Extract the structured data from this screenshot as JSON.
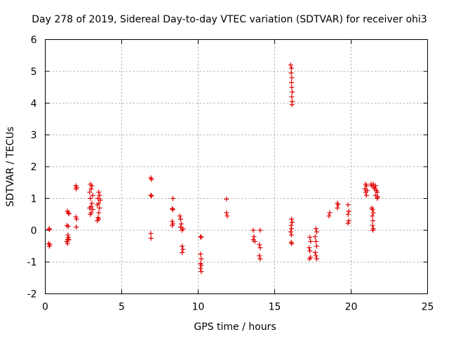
{
  "chart_data": {
    "type": "scatter",
    "title": "Day 278 of 2019, Sidereal Day-to-day VTEC variation (SDTVAR) for receiver ohi3",
    "xlabel": "GPS time / hours",
    "ylabel": "SDTVAR / TECUs",
    "xlim": [
      0,
      25
    ],
    "ylim": [
      -2,
      6
    ],
    "xticks": [
      "0",
      "5",
      "10",
      "15",
      "20",
      "25"
    ],
    "yticks": [
      "-2",
      "-1",
      "0",
      "1",
      "2",
      "3",
      "4",
      "5",
      "6"
    ],
    "grid": true,
    "marker": "plus",
    "color": "#e00000",
    "series": [
      {
        "name": "SDTVAR",
        "points": [
          [
            0.25,
            0.05
          ],
          [
            0.28,
            0.02
          ],
          [
            0.22,
            -0.42
          ],
          [
            0.27,
            -0.5
          ],
          [
            0.3,
            -0.45
          ],
          [
            1.45,
            0.6
          ],
          [
            1.5,
            0.55
          ],
          [
            1.55,
            0.52
          ],
          [
            1.42,
            0.15
          ],
          [
            1.5,
            0.12
          ],
          [
            1.48,
            -0.15
          ],
          [
            1.52,
            -0.22
          ],
          [
            1.46,
            -0.28
          ],
          [
            1.55,
            -0.3
          ],
          [
            1.4,
            -0.35
          ],
          [
            1.45,
            -0.42
          ],
          [
            2.0,
            1.4
          ],
          [
            2.05,
            1.35
          ],
          [
            2.02,
            1.3
          ],
          [
            2.0,
            0.42
          ],
          [
            2.05,
            0.35
          ],
          [
            2.03,
            0.1
          ],
          [
            2.95,
            1.45
          ],
          [
            3.05,
            1.4
          ],
          [
            3.0,
            1.3
          ],
          [
            2.9,
            1.2
          ],
          [
            3.1,
            1.1
          ],
          [
            2.95,
            1.0
          ],
          [
            3.05,
            0.85
          ],
          [
            3.0,
            0.75
          ],
          [
            2.9,
            0.7
          ],
          [
            3.1,
            0.65
          ],
          [
            3.0,
            0.55
          ],
          [
            2.95,
            0.5
          ],
          [
            3.5,
            1.2
          ],
          [
            3.55,
            1.1
          ],
          [
            3.45,
            1.0
          ],
          [
            3.6,
            0.95
          ],
          [
            3.5,
            0.85
          ],
          [
            3.4,
            0.8
          ],
          [
            3.55,
            0.7
          ],
          [
            3.5,
            0.55
          ],
          [
            3.45,
            0.4
          ],
          [
            3.5,
            0.35
          ],
          [
            3.4,
            0.3
          ],
          [
            6.9,
            1.65
          ],
          [
            6.95,
            1.6
          ],
          [
            6.9,
            1.1
          ],
          [
            6.95,
            1.08
          ],
          [
            6.9,
            -0.1
          ],
          [
            6.92,
            -0.25
          ],
          [
            8.35,
            1.0
          ],
          [
            8.3,
            0.68
          ],
          [
            8.35,
            0.65
          ],
          [
            8.3,
            0.28
          ],
          [
            8.35,
            0.2
          ],
          [
            8.3,
            0.15
          ],
          [
            8.8,
            0.45
          ],
          [
            8.85,
            0.35
          ],
          [
            8.9,
            0.2
          ],
          [
            8.85,
            0.1
          ],
          [
            9.0,
            0.05
          ],
          [
            8.95,
            0.0
          ],
          [
            8.95,
            -0.5
          ],
          [
            9.0,
            -0.6
          ],
          [
            8.95,
            -0.7
          ],
          [
            10.15,
            -0.2
          ],
          [
            10.2,
            -0.22
          ],
          [
            10.15,
            -0.75
          ],
          [
            10.2,
            -0.9
          ],
          [
            10.15,
            -1.05
          ],
          [
            10.2,
            -1.1
          ],
          [
            10.15,
            -1.2
          ],
          [
            10.2,
            -1.3
          ],
          [
            11.85,
            0.98
          ],
          [
            11.85,
            0.55
          ],
          [
            11.9,
            0.45
          ],
          [
            13.6,
            0.0
          ],
          [
            13.65,
            -0.2
          ],
          [
            13.6,
            -0.3
          ],
          [
            13.7,
            -0.35
          ],
          [
            14.05,
            0.0
          ],
          [
            14.0,
            -0.45
          ],
          [
            14.05,
            -0.55
          ],
          [
            14.0,
            -0.8
          ],
          [
            14.05,
            -0.9
          ],
          [
            16.05,
            5.2
          ],
          [
            16.1,
            5.1
          ],
          [
            16.08,
            4.95
          ],
          [
            16.12,
            4.8
          ],
          [
            16.1,
            4.65
          ],
          [
            16.12,
            4.5
          ],
          [
            16.15,
            4.35
          ],
          [
            16.12,
            4.2
          ],
          [
            16.15,
            4.05
          ],
          [
            16.13,
            3.95
          ],
          [
            16.1,
            0.35
          ],
          [
            16.15,
            0.25
          ],
          [
            16.08,
            0.15
          ],
          [
            16.1,
            0.05
          ],
          [
            16.05,
            -0.05
          ],
          [
            16.1,
            -0.15
          ],
          [
            16.08,
            -0.38
          ],
          [
            16.12,
            -0.42
          ],
          [
            17.3,
            -0.22
          ],
          [
            17.35,
            -0.35
          ],
          [
            17.25,
            -0.55
          ],
          [
            17.3,
            -0.65
          ],
          [
            17.35,
            -0.85
          ],
          [
            17.28,
            -0.9
          ],
          [
            17.7,
            0.05
          ],
          [
            17.75,
            -0.05
          ],
          [
            17.65,
            -0.2
          ],
          [
            17.7,
            -0.35
          ],
          [
            17.75,
            -0.5
          ],
          [
            17.65,
            -0.7
          ],
          [
            17.7,
            -0.8
          ],
          [
            17.75,
            -0.9
          ],
          [
            18.6,
            0.55
          ],
          [
            18.55,
            0.45
          ],
          [
            19.1,
            0.85
          ],
          [
            19.15,
            0.8
          ],
          [
            19.1,
            0.7
          ],
          [
            19.8,
            0.8
          ],
          [
            19.85,
            0.6
          ],
          [
            19.8,
            0.5
          ],
          [
            19.85,
            0.3
          ],
          [
            19.8,
            0.22
          ],
          [
            20.95,
            1.45
          ],
          [
            21.0,
            1.4
          ],
          [
            20.9,
            1.3
          ],
          [
            21.05,
            1.25
          ],
          [
            20.95,
            1.2
          ],
          [
            21.0,
            1.1
          ],
          [
            21.3,
            1.45
          ],
          [
            21.45,
            1.45
          ],
          [
            21.35,
            1.4
          ],
          [
            21.5,
            1.35
          ],
          [
            21.6,
            1.4
          ],
          [
            21.55,
            1.3
          ],
          [
            21.65,
            1.25
          ],
          [
            21.7,
            1.2
          ],
          [
            21.6,
            1.1
          ],
          [
            21.75,
            1.05
          ],
          [
            21.7,
            1.0
          ],
          [
            21.35,
            0.7
          ],
          [
            21.4,
            0.65
          ],
          [
            21.45,
            0.55
          ],
          [
            21.38,
            0.45
          ],
          [
            21.42,
            0.3
          ],
          [
            21.4,
            0.15
          ],
          [
            21.45,
            0.05
          ],
          [
            21.42,
            0.0
          ]
        ]
      }
    ]
  }
}
